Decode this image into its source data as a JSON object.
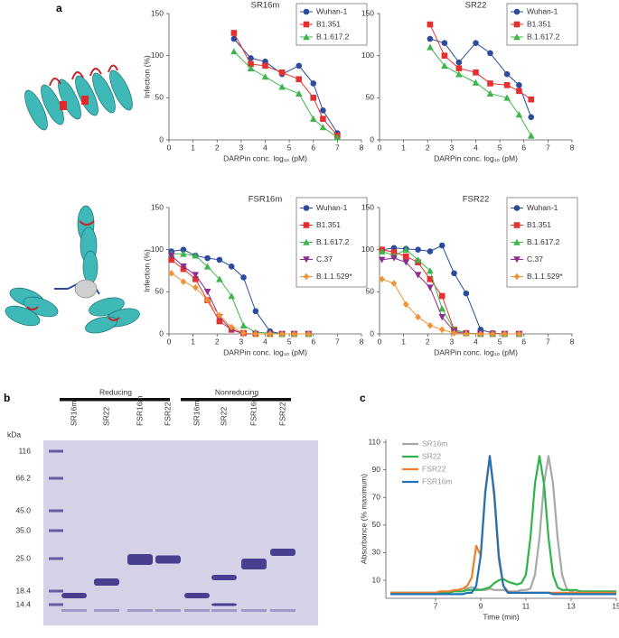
{
  "panel_labels": [
    "a",
    "b",
    "c"
  ],
  "chart_data": [
    {
      "type": "line",
      "title": "SR16m",
      "xlabel": "DARPin conc. log₁₀ (pM)",
      "ylabel": "Infection (%)",
      "x": [
        2.7,
        3.4,
        4.0,
        4.7,
        5.4,
        6.0,
        6.4,
        7.0
      ],
      "series": [
        {
          "name": "Wuhan-1",
          "color": "#2b4c9e",
          "marker": "circle",
          "values": [
            120,
            97,
            93,
            78,
            88,
            67,
            35,
            8
          ]
        },
        {
          "name": "B1.351",
          "color": "#e4312f",
          "marker": "square",
          "values": [
            127,
            90,
            88,
            80,
            72,
            50,
            25,
            5
          ]
        },
        {
          "name": "B.1.617.2",
          "color": "#3db54a",
          "marker": "triangle",
          "values": [
            105,
            85,
            75,
            63,
            55,
            25,
            15,
            3
          ]
        }
      ],
      "xlim": [
        0,
        8
      ],
      "xticks": [
        0,
        1,
        2,
        3,
        4,
        5,
        6,
        7,
        8
      ],
      "ylim": [
        0,
        150
      ],
      "yticks": [
        0,
        50,
        100,
        150
      ],
      "legend": "upper right"
    },
    {
      "type": "line",
      "title": "SR22",
      "xlabel": "DARPin conc. log₁₀ (pM)",
      "x": [
        2.1,
        2.7,
        3.3,
        4.0,
        4.6,
        5.3,
        5.8,
        6.3
      ],
      "series": [
        {
          "name": "Wuhan-1",
          "color": "#2b4c9e",
          "marker": "circle",
          "values": [
            120,
            115,
            92,
            115,
            103,
            78,
            65,
            27
          ]
        },
        {
          "name": "B1.351",
          "color": "#e4312f",
          "marker": "square",
          "values": [
            137,
            100,
            85,
            80,
            67,
            65,
            58,
            48
          ]
        },
        {
          "name": "B.1.617.2",
          "color": "#3db54a",
          "marker": "triangle",
          "values": [
            110,
            88,
            78,
            68,
            55,
            50,
            30,
            5
          ]
        }
      ],
      "xlim": [
        0,
        8
      ],
      "xticks": [
        0,
        1,
        2,
        3,
        4,
        5,
        6,
        7,
        8
      ],
      "ylim": [
        0,
        150
      ],
      "yticks": [
        0,
        50,
        100,
        150
      ],
      "legend": "upper right"
    },
    {
      "type": "line",
      "title": "FSR16m",
      "xlabel": "DARPin conc. log₁₀ (pM)",
      "ylabel": "Infection (%)",
      "x": [
        0.1,
        0.6,
        1.1,
        1.6,
        2.1,
        2.6,
        3.1,
        3.6,
        4.2,
        4.7,
        5.2,
        5.8
      ],
      "series": [
        {
          "name": "Wuhan-1",
          "color": "#2b4c9e",
          "marker": "circle",
          "values": [
            98,
            100,
            93,
            90,
            88,
            80,
            67,
            27,
            3,
            0,
            0,
            0
          ]
        },
        {
          "name": "B1.351",
          "color": "#e4312f",
          "marker": "square",
          "values": [
            88,
            77,
            65,
            40,
            15,
            5,
            1,
            0,
            0,
            0,
            0,
            0
          ]
        },
        {
          "name": "B.1.617.2",
          "color": "#3db54a",
          "marker": "triangle",
          "values": [
            95,
            95,
            93,
            80,
            65,
            45,
            10,
            2,
            1,
            0,
            0,
            0
          ]
        },
        {
          "name": "C.37",
          "color": "#8b2c8e",
          "marker": "down-triangle",
          "values": [
            93,
            80,
            70,
            50,
            20,
            5,
            0,
            0,
            0,
            0,
            0,
            0
          ]
        },
        {
          "name": "B.1.1.529*",
          "color": "#f39235",
          "marker": "diamond",
          "values": [
            72,
            62,
            55,
            40,
            22,
            8,
            1,
            0,
            0,
            0,
            0,
            0
          ]
        }
      ],
      "xlim": [
        0,
        8
      ],
      "xticks": [
        0,
        1,
        2,
        3,
        4,
        5,
        6,
        7,
        8
      ],
      "ylim": [
        0,
        150
      ],
      "yticks": [
        0,
        50,
        100,
        150
      ],
      "legend": "upper right"
    },
    {
      "type": "line",
      "title": "FSR22",
      "xlabel": "DARPin conc. log₁₀ (pM)",
      "x": [
        0.1,
        0.6,
        1.1,
        1.6,
        2.1,
        2.6,
        3.1,
        3.6,
        4.2,
        4.7,
        5.2,
        5.8
      ],
      "series": [
        {
          "name": "Wuhan-1",
          "color": "#2b4c9e",
          "marker": "circle",
          "values": [
            100,
            102,
            101,
            100,
            98,
            105,
            72,
            48,
            5,
            1,
            0,
            0
          ]
        },
        {
          "name": "B1.351",
          "color": "#e4312f",
          "marker": "square",
          "values": [
            100,
            97,
            92,
            85,
            65,
            45,
            5,
            1,
            0,
            0,
            0,
            0
          ]
        },
        {
          "name": "B.1.617.2",
          "color": "#3db54a",
          "marker": "triangle",
          "values": [
            98,
            93,
            100,
            88,
            75,
            30,
            5,
            1,
            0,
            0,
            0,
            0
          ]
        },
        {
          "name": "C.37",
          "color": "#8b2c8e",
          "marker": "down-triangle",
          "values": [
            88,
            90,
            85,
            70,
            55,
            20,
            3,
            0,
            0,
            0,
            0,
            0
          ]
        },
        {
          "name": "B.1.1.529*",
          "color": "#f39235",
          "marker": "diamond",
          "values": [
            65,
            60,
            35,
            20,
            10,
            5,
            1,
            0,
            0,
            0,
            0,
            0
          ]
        }
      ],
      "xlim": [
        0,
        8
      ],
      "xticks": [
        0,
        1,
        2,
        3,
        4,
        5,
        6,
        7,
        8
      ],
      "ylim": [
        0,
        150
      ],
      "yticks": [
        0,
        50,
        100,
        150
      ],
      "legend": "upper right"
    },
    {
      "type": "line",
      "xlabel": "Time (min)",
      "ylabel": "Absorbance (% maximum)",
      "x": [
        5.0,
        5.2,
        5.4,
        5.6,
        5.8,
        6.0,
        6.2,
        6.4,
        6.6,
        6.8,
        7.0,
        7.2,
        7.4,
        7.6,
        7.8,
        8.0,
        8.2,
        8.4,
        8.6,
        8.8,
        9.0,
        9.2,
        9.4,
        9.6,
        9.8,
        10.0,
        10.2,
        10.4,
        10.6,
        10.8,
        11.0,
        11.2,
        11.4,
        11.6,
        11.8,
        12.0,
        12.2,
        12.4,
        12.6,
        12.8,
        13.0,
        13.2,
        13.4,
        13.6,
        13.8,
        14.0,
        14.2,
        14.4,
        14.6,
        14.8,
        15.0
      ],
      "series": [
        {
          "name": "SR16m",
          "color": "#a8a8a8",
          "values": [
            1,
            1,
            1,
            1,
            1,
            1,
            1,
            1,
            1,
            1,
            1,
            1,
            1,
            2,
            2,
            3,
            4,
            4,
            5,
            4,
            3,
            3,
            4,
            3,
            3,
            3,
            2,
            2,
            2,
            3,
            3,
            4,
            14,
            41,
            80,
            100,
            80,
            41,
            14,
            4,
            2,
            1,
            1,
            1,
            1,
            1,
            1,
            1,
            1,
            1,
            1
          ]
        },
        {
          "name": "SR22",
          "color": "#2db34a",
          "values": [
            1,
            1,
            1,
            1,
            1,
            1,
            1,
            1,
            1,
            1,
            1,
            1,
            1,
            1,
            2,
            2,
            2,
            3,
            3,
            3,
            3,
            4,
            5,
            8,
            10,
            11,
            9,
            8,
            7,
            8,
            14,
            41,
            80,
            100,
            80,
            41,
            14,
            5,
            3,
            3,
            3,
            3,
            2,
            2,
            2,
            2,
            2,
            2,
            2,
            2,
            2
          ]
        },
        {
          "name": "FSR22",
          "color": "#f07f2b",
          "values": [
            1,
            1,
            1,
            1,
            1,
            1,
            1,
            1,
            1,
            1,
            1,
            2,
            2,
            2,
            3,
            3,
            4,
            6,
            12,
            35,
            28,
            75,
            100,
            70,
            25,
            6,
            2,
            1,
            1,
            1,
            1,
            1,
            1,
            1,
            1,
            1,
            1,
            1,
            1,
            1,
            1,
            1,
            1,
            1,
            1,
            1,
            1,
            1,
            1,
            1,
            1
          ]
        },
        {
          "name": "FSR16m",
          "color": "#1f72b8",
          "values": [
            0,
            0,
            0,
            0,
            0,
            0,
            0,
            0,
            0,
            0,
            0,
            0,
            0,
            0,
            0,
            0,
            0,
            1,
            1,
            6,
            28,
            73,
            100,
            73,
            28,
            6,
            1,
            1,
            1,
            1,
            1,
            1,
            1,
            1,
            1,
            1,
            0,
            0,
            0,
            0,
            0,
            0,
            0,
            0,
            0,
            0,
            0,
            0,
            0,
            0,
            0
          ]
        }
      ],
      "xlim": [
        4.8,
        15
      ],
      "xticks": [
        7,
        9,
        11,
        13,
        15
      ],
      "ylim": [
        -3,
        112
      ],
      "yticks": [
        10,
        30,
        50,
        70,
        90,
        110
      ],
      "legend": "upper left"
    }
  ],
  "gel": {
    "unit": "kDa",
    "markers": [
      "116",
      "66.2",
      "45.0",
      "35.0",
      "25.0",
      "18.4",
      "14.4"
    ],
    "lanes": [
      "SR16m",
      "SR22",
      "FSR16m",
      "FSR22",
      "SR16m",
      "SR22",
      "FSR16m",
      "FSR22"
    ],
    "groups": [
      "Reducing",
      "Nonreducing"
    ]
  }
}
